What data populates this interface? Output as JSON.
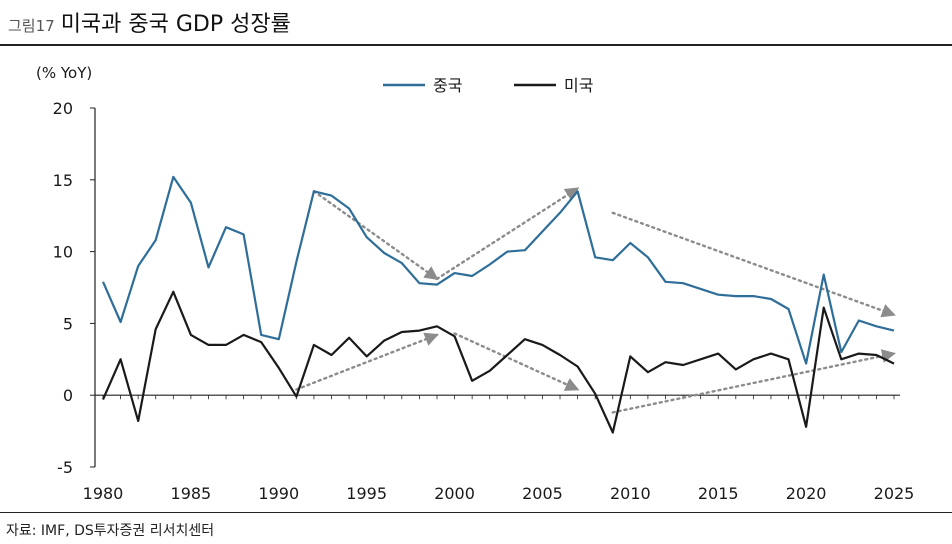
{
  "header": {
    "figure_number": "그림17",
    "title": "미국과 중국 GDP 성장률"
  },
  "source": "자료: IMF, DS투자증권 리서치센터",
  "chart_data": {
    "type": "line",
    "unit_label": "(% YoY)",
    "xlabel": "",
    "ylabel": "",
    "ylim": [
      -5,
      20
    ],
    "xlim": [
      1980,
      2025
    ],
    "y_ticks": [
      -5,
      0,
      5,
      10,
      15,
      20
    ],
    "x_ticks": [
      1980,
      1985,
      1990,
      1995,
      2000,
      2005,
      2010,
      2015,
      2020,
      2025
    ],
    "grid": false,
    "legend_position": "top-center",
    "x": [
      1980,
      1981,
      1982,
      1983,
      1984,
      1985,
      1986,
      1987,
      1988,
      1989,
      1990,
      1991,
      1992,
      1993,
      1994,
      1995,
      1996,
      1997,
      1998,
      1999,
      2000,
      2001,
      2002,
      2003,
      2004,
      2005,
      2006,
      2007,
      2008,
      2009,
      2010,
      2011,
      2012,
      2013,
      2014,
      2015,
      2016,
      2017,
      2018,
      2019,
      2020,
      2021,
      2022,
      2023,
      2024,
      2025
    ],
    "series": [
      {
        "name": "중국",
        "color": "#2e6e99",
        "values": [
          7.9,
          5.1,
          9.0,
          10.8,
          15.2,
          13.4,
          8.9,
          11.7,
          11.2,
          4.2,
          3.9,
          9.3,
          14.2,
          13.9,
          13.0,
          11.0,
          9.9,
          9.2,
          7.8,
          7.7,
          8.5,
          8.3,
          9.1,
          10.0,
          10.1,
          11.4,
          12.7,
          14.2,
          9.6,
          9.4,
          10.6,
          9.6,
          7.9,
          7.8,
          7.4,
          7.0,
          6.9,
          6.9,
          6.7,
          6.0,
          2.2,
          8.4,
          3.0,
          5.2,
          4.8,
          4.5
        ]
      },
      {
        "name": "미국",
        "color": "#1a1a1a",
        "values": [
          -0.3,
          2.5,
          -1.8,
          4.6,
          7.2,
          4.2,
          3.5,
          3.5,
          4.2,
          3.7,
          1.9,
          -0.1,
          3.5,
          2.8,
          4.0,
          2.7,
          3.8,
          4.4,
          4.5,
          4.8,
          4.1,
          1.0,
          1.7,
          2.8,
          3.9,
          3.5,
          2.8,
          2.0,
          0.1,
          -2.6,
          2.7,
          1.6,
          2.3,
          2.1,
          2.5,
          2.9,
          1.8,
          2.5,
          2.9,
          2.5,
          -2.2,
          6.1,
          2.5,
          2.9,
          2.8,
          2.2
        ]
      }
    ],
    "trend_arrows": [
      {
        "series": "중국",
        "from": [
          1992,
          14.2
        ],
        "to": [
          1999,
          8.1
        ]
      },
      {
        "series": "중국",
        "from": [
          1999,
          8.1
        ],
        "to": [
          2007,
          14.4
        ]
      },
      {
        "series": "중국",
        "from": [
          2009,
          12.7
        ],
        "to": [
          2025,
          5.6
        ]
      },
      {
        "series": "미국",
        "from": [
          1991,
          0.4
        ],
        "to": [
          1999,
          4.2
        ]
      },
      {
        "series": "미국",
        "from": [
          2000,
          4.3
        ],
        "to": [
          2007,
          0.4
        ]
      },
      {
        "series": "미국",
        "from": [
          2009,
          -1.2
        ],
        "to": [
          2025,
          2.9
        ]
      }
    ],
    "arrow_color": "#8c8c8c"
  }
}
